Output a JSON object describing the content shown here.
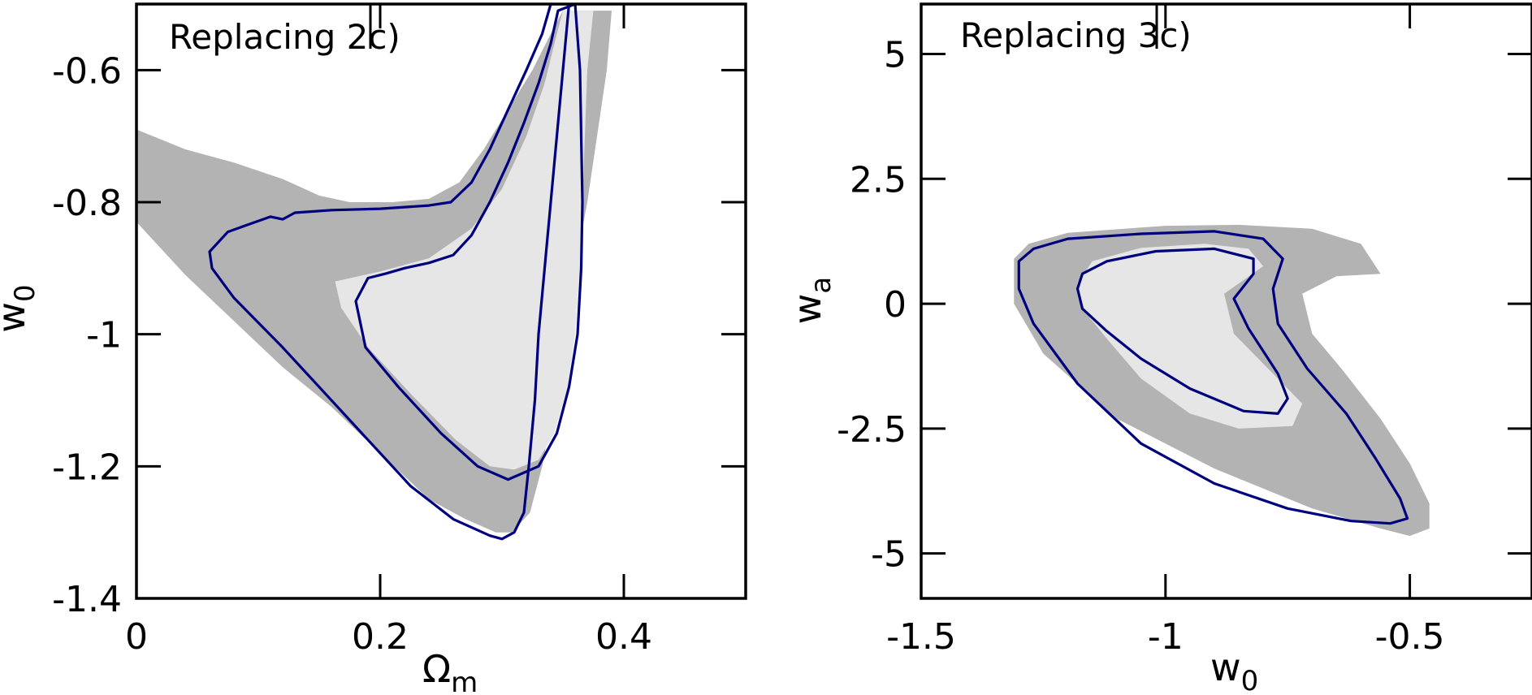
{
  "chart_data": [
    {
      "type": "contour",
      "panel": "left",
      "title": "Replacing 2c)",
      "xlabel_main": "Ω",
      "xlabel_sub": "m",
      "ylabel_main": "w",
      "ylabel_sub": "0",
      "xlim": [
        0,
        0.5
      ],
      "ylim": [
        -1.4,
        -0.5
      ],
      "xticks": [
        0,
        0.2,
        0.4
      ],
      "xtick_labels": [
        "0",
        "0.2",
        "0.4"
      ],
      "yticks": [
        -1.4,
        -1.2,
        -1.0,
        -0.8,
        -0.6
      ],
      "ytick_labels": [
        "-1.4",
        "-1.2",
        "-1",
        "-0.8",
        "-0.6"
      ],
      "colors": {
        "outer_fill": "#b3b3b3",
        "inner_fill": "#e6e6e6",
        "contour_line": "#00007f",
        "frame": "#000000"
      },
      "series": [
        {
          "name": "outer-region",
          "style": "fill-dark",
          "points": [
            [
              0,
              -0.69
            ],
            [
              0.04,
              -0.72
            ],
            [
              0.08,
              -0.74
            ],
            [
              0.12,
              -0.765
            ],
            [
              0.15,
              -0.79
            ],
            [
              0.175,
              -0.8
            ],
            [
              0.21,
              -0.8
            ],
            [
              0.24,
              -0.795
            ],
            [
              0.265,
              -0.77
            ],
            [
              0.285,
              -0.72
            ],
            [
              0.305,
              -0.66
            ],
            [
              0.325,
              -0.6
            ],
            [
              0.34,
              -0.545
            ],
            [
              0.35,
              -0.51
            ],
            [
              0.39,
              -0.51
            ],
            [
              0.386,
              -0.6
            ],
            [
              0.378,
              -0.7
            ],
            [
              0.37,
              -0.8
            ],
            [
              0.36,
              -0.9
            ],
            [
              0.352,
              -1.0
            ],
            [
              0.343,
              -1.1
            ],
            [
              0.333,
              -1.2
            ],
            [
              0.323,
              -1.27
            ],
            [
              0.308,
              -1.3
            ],
            [
              0.295,
              -1.3
            ],
            [
              0.27,
              -1.28
            ],
            [
              0.24,
              -1.25
            ],
            [
              0.2,
              -1.18
            ],
            [
              0.16,
              -1.11
            ],
            [
              0.12,
              -1.05
            ],
            [
              0.08,
              -0.98
            ],
            [
              0.04,
              -0.91
            ],
            [
              0,
              -0.83
            ]
          ]
        },
        {
          "name": "inner-region",
          "style": "fill-light",
          "points": [
            [
              0.163,
              -0.92
            ],
            [
              0.2,
              -0.905
            ],
            [
              0.24,
              -0.885
            ],
            [
              0.275,
              -0.84
            ],
            [
              0.3,
              -0.78
            ],
            [
              0.32,
              -0.7
            ],
            [
              0.335,
              -0.62
            ],
            [
              0.343,
              -0.56
            ],
            [
              0.35,
              -0.51
            ],
            [
              0.375,
              -0.51
            ],
            [
              0.37,
              -0.6
            ],
            [
              0.368,
              -0.7
            ],
            [
              0.366,
              -0.8
            ],
            [
              0.364,
              -0.9
            ],
            [
              0.36,
              -1.0
            ],
            [
              0.354,
              -1.08
            ],
            [
              0.343,
              -1.15
            ],
            [
              0.33,
              -1.19
            ],
            [
              0.31,
              -1.205
            ],
            [
              0.29,
              -1.2
            ],
            [
              0.262,
              -1.16
            ],
            [
              0.225,
              -1.09
            ],
            [
              0.19,
              -1.02
            ],
            [
              0.168,
              -0.96
            ]
          ]
        },
        {
          "name": "outer-contour",
          "style": "line",
          "points": [
            [
              0.06,
              -0.875
            ],
            [
              0.075,
              -0.845
            ],
            [
              0.09,
              -0.835
            ],
            [
              0.11,
              -0.822
            ],
            [
              0.12,
              -0.826
            ],
            [
              0.13,
              -0.816
            ],
            [
              0.16,
              -0.812
            ],
            [
              0.2,
              -0.81
            ],
            [
              0.24,
              -0.805
            ],
            [
              0.258,
              -0.8
            ],
            [
              0.275,
              -0.77
            ],
            [
              0.29,
              -0.72
            ],
            [
              0.305,
              -0.66
            ],
            [
              0.32,
              -0.6
            ],
            [
              0.333,
              -0.545
            ],
            [
              0.34,
              -0.5
            ],
            [
              0.355,
              -0.5
            ],
            [
              0.35,
              -0.6
            ],
            [
              0.345,
              -0.7
            ],
            [
              0.34,
              -0.8
            ],
            [
              0.335,
              -0.9
            ],
            [
              0.33,
              -1.0
            ],
            [
              0.327,
              -1.1
            ],
            [
              0.322,
              -1.2
            ],
            [
              0.318,
              -1.27
            ],
            [
              0.31,
              -1.3
            ],
            [
              0.3,
              -1.31
            ],
            [
              0.29,
              -1.305
            ],
            [
              0.26,
              -1.28
            ],
            [
              0.225,
              -1.23
            ],
            [
              0.19,
              -1.16
            ],
            [
              0.15,
              -1.08
            ],
            [
              0.12,
              -1.02
            ],
            [
              0.08,
              -0.945
            ],
            [
              0.062,
              -0.9
            ],
            [
              0.06,
              -0.875
            ]
          ]
        },
        {
          "name": "inner-contour",
          "style": "line",
          "points": [
            [
              0.19,
              -0.915
            ],
            [
              0.205,
              -0.908
            ],
            [
              0.22,
              -0.9
            ],
            [
              0.24,
              -0.892
            ],
            [
              0.26,
              -0.88
            ],
            [
              0.275,
              -0.85
            ],
            [
              0.29,
              -0.8
            ],
            [
              0.305,
              -0.74
            ],
            [
              0.318,
              -0.68
            ],
            [
              0.33,
              -0.62
            ],
            [
              0.34,
              -0.56
            ],
            [
              0.346,
              -0.51
            ],
            [
              0.36,
              -0.5
            ],
            [
              0.364,
              -0.6
            ],
            [
              0.365,
              -0.7
            ],
            [
              0.366,
              -0.8
            ],
            [
              0.365,
              -0.9
            ],
            [
              0.362,
              -1.0
            ],
            [
              0.355,
              -1.08
            ],
            [
              0.345,
              -1.15
            ],
            [
              0.33,
              -1.2
            ],
            [
              0.305,
              -1.22
            ],
            [
              0.28,
              -1.2
            ],
            [
              0.25,
              -1.15
            ],
            [
              0.215,
              -1.08
            ],
            [
              0.188,
              -1.02
            ],
            [
              0.18,
              -0.95
            ],
            [
              0.19,
              -0.915
            ]
          ]
        }
      ]
    },
    {
      "type": "contour",
      "panel": "right",
      "title": "Replacing 3c)",
      "xlabel_main": "w",
      "xlabel_sub": "0",
      "ylabel_main": "w",
      "ylabel_sub": "a",
      "xlim": [
        -1.5,
        -0.25
      ],
      "ylim": [
        -5.9,
        6
      ],
      "xticks": [
        -1.5,
        -1.0,
        -0.5
      ],
      "xtick_labels": [
        "-1.5",
        "-1",
        "-0.5"
      ],
      "yticks": [
        -5,
        -2.5,
        0,
        2.5,
        5
      ],
      "ytick_labels": [
        "-5",
        "-2.5",
        "0",
        "2.5",
        "5"
      ],
      "colors": {
        "outer_fill": "#b3b3b3",
        "inner_fill": "#e6e6e6",
        "contour_line": "#00007f",
        "frame": "#000000"
      },
      "series": [
        {
          "name": "outer-region",
          "style": "fill-dark",
          "points": [
            [
              -1.31,
              0.9
            ],
            [
              -1.28,
              1.2
            ],
            [
              -1.2,
              1.42
            ],
            [
              -1.0,
              1.56
            ],
            [
              -0.85,
              1.58
            ],
            [
              -0.7,
              1.5
            ],
            [
              -0.6,
              1.2
            ],
            [
              -0.56,
              0.6
            ],
            [
              -0.65,
              0.55
            ],
            [
              -0.72,
              0.2
            ],
            [
              -0.7,
              -0.6
            ],
            [
              -0.64,
              -1.3
            ],
            [
              -0.56,
              -2.3
            ],
            [
              -0.5,
              -3.2
            ],
            [
              -0.46,
              -4.0
            ],
            [
              -0.46,
              -4.5
            ],
            [
              -0.5,
              -4.65
            ],
            [
              -0.56,
              -4.5
            ],
            [
              -0.7,
              -4.1
            ],
            [
              -0.9,
              -3.3
            ],
            [
              -1.1,
              -2.3
            ],
            [
              -1.25,
              -1.0
            ],
            [
              -1.31,
              0.0
            ]
          ]
        },
        {
          "name": "inner-region",
          "style": "fill-light",
          "points": [
            [
              -1.18,
              0.4
            ],
            [
              -1.15,
              0.85
            ],
            [
              -1.05,
              1.12
            ],
            [
              -0.92,
              1.2
            ],
            [
              -0.83,
              1.1
            ],
            [
              -0.8,
              0.75
            ],
            [
              -0.88,
              0.2
            ],
            [
              -0.86,
              -0.6
            ],
            [
              -0.78,
              -1.4
            ],
            [
              -0.72,
              -2.0
            ],
            [
              -0.74,
              -2.45
            ],
            [
              -0.85,
              -2.5
            ],
            [
              -0.95,
              -2.2
            ],
            [
              -1.05,
              -1.5
            ],
            [
              -1.12,
              -0.7
            ],
            [
              -1.17,
              -0.1
            ]
          ]
        },
        {
          "name": "outer-contour",
          "style": "line",
          "points": [
            [
              -1.3,
              0.85
            ],
            [
              -1.27,
              1.1
            ],
            [
              -1.2,
              1.3
            ],
            [
              -1.05,
              1.4
            ],
            [
              -0.9,
              1.45
            ],
            [
              -0.8,
              1.3
            ],
            [
              -0.76,
              0.9
            ],
            [
              -0.78,
              0.3
            ],
            [
              -0.77,
              -0.4
            ],
            [
              -0.71,
              -1.3
            ],
            [
              -0.63,
              -2.2
            ],
            [
              -0.57,
              -3.1
            ],
            [
              -0.52,
              -3.9
            ],
            [
              -0.505,
              -4.3
            ],
            [
              -0.54,
              -4.4
            ],
            [
              -0.62,
              -4.35
            ],
            [
              -0.75,
              -4.1
            ],
            [
              -0.9,
              -3.6
            ],
            [
              -1.05,
              -2.8
            ],
            [
              -1.18,
              -1.6
            ],
            [
              -1.27,
              -0.4
            ],
            [
              -1.3,
              0.3
            ],
            [
              -1.3,
              0.85
            ]
          ]
        },
        {
          "name": "inner-contour",
          "style": "line",
          "points": [
            [
              -1.18,
              0.3
            ],
            [
              -1.17,
              0.6
            ],
            [
              -1.12,
              0.85
            ],
            [
              -1.02,
              1.05
            ],
            [
              -0.9,
              1.1
            ],
            [
              -0.82,
              0.9
            ],
            [
              -0.82,
              0.6
            ],
            [
              -0.86,
              0.1
            ],
            [
              -0.83,
              -0.5
            ],
            [
              -0.77,
              -1.4
            ],
            [
              -0.75,
              -1.9
            ],
            [
              -0.77,
              -2.2
            ],
            [
              -0.84,
              -2.15
            ],
            [
              -0.95,
              -1.7
            ],
            [
              -1.05,
              -1.1
            ],
            [
              -1.12,
              -0.55
            ],
            [
              -1.17,
              -0.1
            ],
            [
              -1.18,
              0.3
            ]
          ]
        }
      ]
    }
  ]
}
